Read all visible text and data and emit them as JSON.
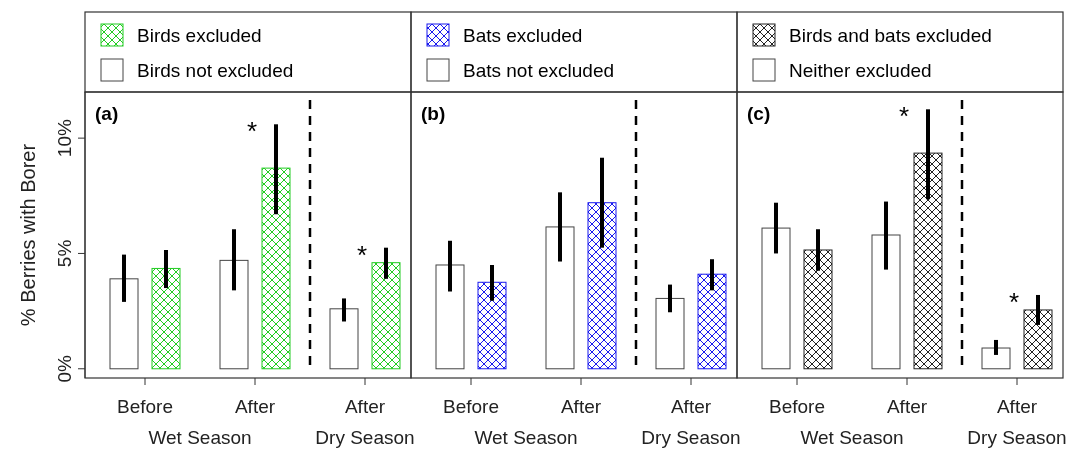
{
  "chart_data": [
    {
      "type": "bar",
      "title": "(a)",
      "ylabel": "% Berries with Borer",
      "categories": [
        "Before",
        "After",
        "After"
      ],
      "ylim": [
        -0.4,
        12
      ],
      "yticks": [
        {
          "value": 0,
          "label": "0%"
        },
        {
          "value": 5,
          "label": "5%"
        },
        {
          "value": 10,
          "label": "10%"
        }
      ],
      "legend": "top",
      "annotations": [
        "Wet Season",
        "Dry Season"
      ],
      "series": [
        {
          "name": "Birds not excluded",
          "color": "#ffffff",
          "values": [
            3.9,
            4.7,
            2.6
          ],
          "errors": [
            [
              2.9,
              4.95
            ],
            [
              3.4,
              6.05
            ],
            [
              2.05,
              3.05
            ]
          ]
        },
        {
          "name": "Birds excluded",
          "color": "#22cc22",
          "values": [
            4.35,
            8.7,
            4.6
          ],
          "errors": [
            [
              3.5,
              5.15
            ],
            [
              6.7,
              10.6
            ],
            [
              3.9,
              5.25
            ]
          ],
          "value_labels": [
            null,
            "*",
            "*"
          ]
        }
      ]
    },
    {
      "type": "bar",
      "title": "(b)",
      "categories": [
        "Before",
        "After",
        "After"
      ],
      "ylim": [
        -0.4,
        12
      ],
      "tick_labels": "x",
      "legend": "top",
      "annotations": [
        "Wet Season",
        "Dry Season"
      ],
      "series": [
        {
          "name": "Bats not excluded",
          "color": "#ffffff",
          "values": [
            4.5,
            6.15,
            3.05
          ],
          "errors": [
            [
              3.35,
              5.55
            ],
            [
              4.65,
              7.65
            ],
            [
              2.45,
              3.65
            ]
          ]
        },
        {
          "name": "Bats excluded",
          "color": "#1a1aee",
          "values": [
            3.75,
            7.2,
            4.1
          ],
          "errors": [
            [
              2.95,
              4.5
            ],
            [
              5.25,
              9.15
            ],
            [
              3.4,
              4.75
            ]
          ]
        }
      ]
    },
    {
      "type": "bar",
      "title": "(c)",
      "categories": [
        "Before",
        "After",
        "After"
      ],
      "ylim": [
        -0.4,
        12
      ],
      "tick_labels": "x",
      "legend": "top",
      "annotations": [
        "Wet Season",
        "Dry Season"
      ],
      "series": [
        {
          "name": "Neither excluded",
          "color": "#ffffff",
          "values": [
            6.1,
            5.8,
            0.9
          ],
          "errors": [
            [
              5.0,
              7.2
            ],
            [
              4.3,
              7.25
            ],
            [
              0.6,
              1.25
            ]
          ]
        },
        {
          "name": "Birds and bats excluded",
          "color": "#222222",
          "values": [
            5.15,
            9.35,
            2.55
          ],
          "errors": [
            [
              4.25,
              6.05
            ],
            [
              7.35,
              11.25
            ],
            [
              1.9,
              3.2
            ]
          ],
          "value_labels": [
            null,
            "*",
            "*"
          ]
        }
      ]
    }
  ]
}
